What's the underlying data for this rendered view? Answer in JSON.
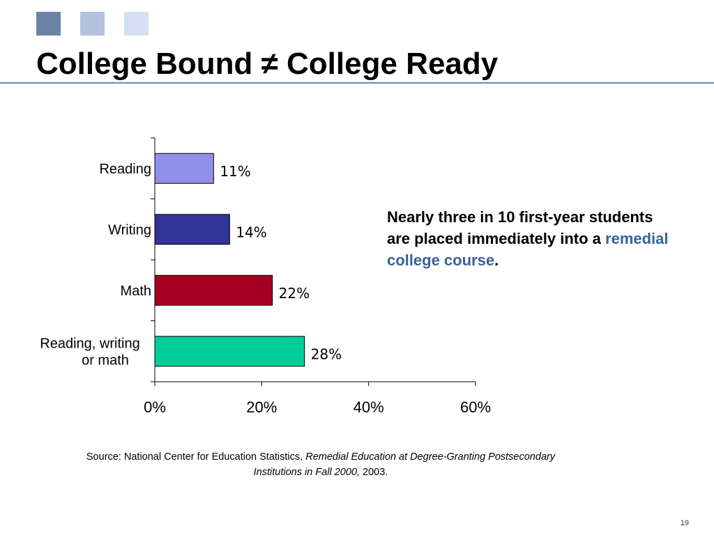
{
  "slide": {
    "title": "College Bound ≠ College Ready",
    "page_number": "19",
    "decor_colors": [
      "#6b84a6",
      "#b3c3de",
      "#d6def3"
    ]
  },
  "note": {
    "line1": "Nearly three in 10 first-year students are placed immediately into a ",
    "highlight": "remedial college course",
    "end": "."
  },
  "source": {
    "prefix": "Source: National Center for Education Statistics, ",
    "title": "Remedial Education at Degree-Granting Postsecondary Institutions in Fall 2000,",
    "year": " 2003."
  },
  "chart_data": {
    "type": "bar",
    "orientation": "horizontal",
    "categories": [
      "Reading",
      "Writing",
      "Math",
      "Reading, writing or math"
    ],
    "values": [
      11,
      14,
      22,
      28
    ],
    "value_labels": [
      "11%",
      "14%",
      "22%",
      "28%"
    ],
    "colors": [
      "#9090e8",
      "#333399",
      "#a50021",
      "#00cc99"
    ],
    "xlim": [
      0,
      60
    ],
    "xticks": [
      0,
      20,
      40,
      60
    ],
    "xtick_labels": [
      "0%",
      "20%",
      "40%",
      "60%"
    ],
    "title": "",
    "xlabel": "",
    "ylabel": "",
    "grid": false,
    "legend": "none"
  }
}
